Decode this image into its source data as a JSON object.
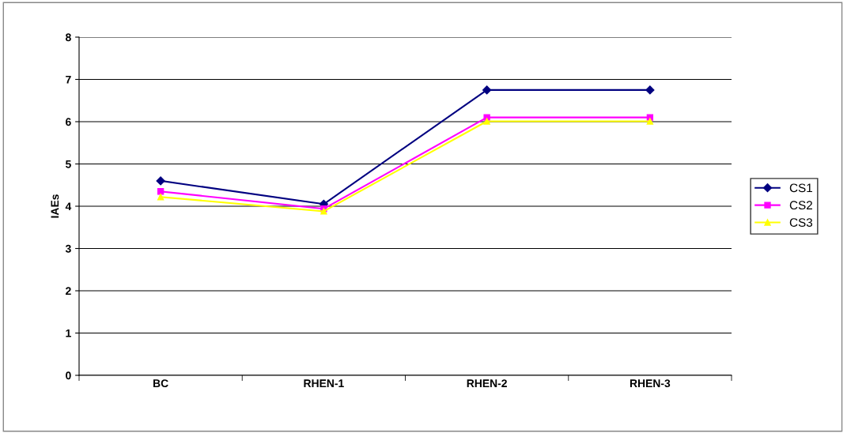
{
  "chart_data": {
    "type": "line",
    "ylabel": "IAEs",
    "categories": [
      "BC",
      "RHEN-1",
      "RHEN-2",
      "RHEN-3"
    ],
    "series": [
      {
        "name": "CS1",
        "color": "#000080",
        "marker": "diamond",
        "values": [
          4.6,
          4.05,
          6.75,
          6.75
        ]
      },
      {
        "name": "CS2",
        "color": "#ff00ff",
        "marker": "square",
        "values": [
          4.35,
          3.94,
          6.1,
          6.1
        ]
      },
      {
        "name": "CS3",
        "color": "#ffff00",
        "marker": "triangle",
        "values": [
          4.22,
          3.88,
          6.01,
          6.01
        ]
      }
    ],
    "ylim": [
      0,
      8
    ],
    "yticks": [
      0,
      1,
      2,
      3,
      4,
      5,
      6,
      7,
      8
    ],
    "grid": "y",
    "legend": "right",
    "line_style": "solid"
  }
}
